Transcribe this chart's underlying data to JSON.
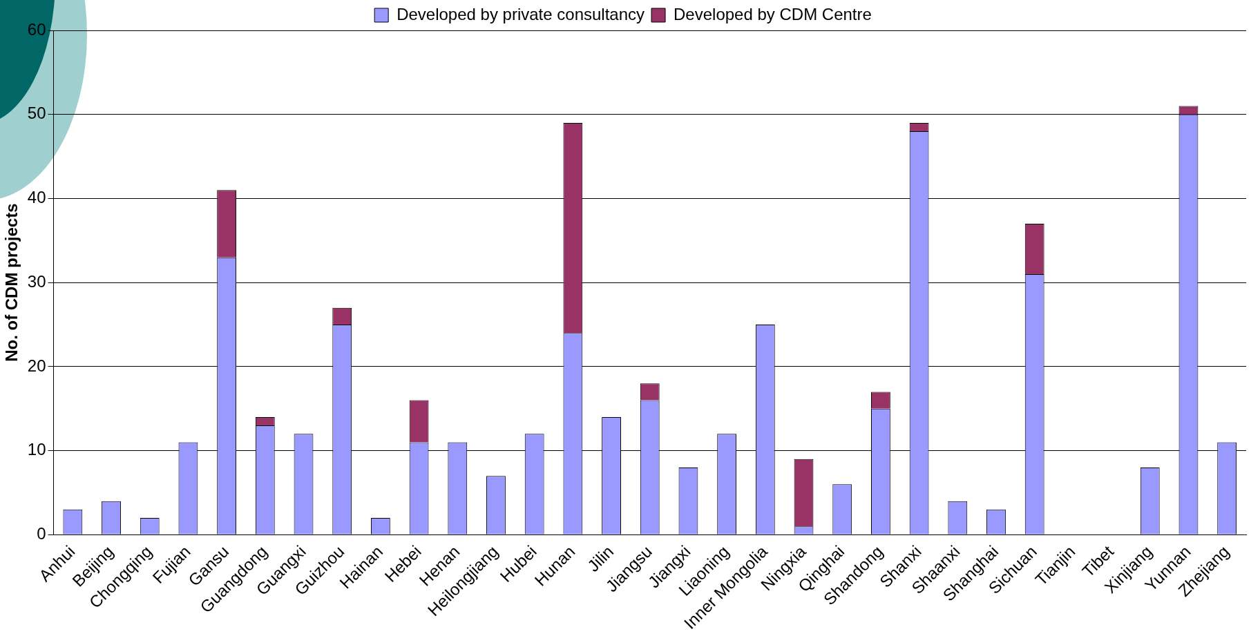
{
  "chart_data": {
    "type": "bar",
    "stacked": true,
    "ylabel": "No. of CDM projects",
    "categories": [
      "Anhui",
      "Beijing",
      "Chongqing",
      "Fujian",
      "Gansu",
      "Guangdong",
      "Guangxi",
      "Guizhou",
      "Hainan",
      "Hebei",
      "Henan",
      "Heilongjiang",
      "Hubei",
      "Hunan",
      "Jilin",
      "Jiangsu",
      "Jiangxi",
      "Liaoning",
      "Inner Mongolia",
      "Ningxia",
      "Qinghai",
      "Shandong",
      "Shanxi",
      "Shaanxi",
      "Shanghai",
      "Sichuan",
      "Tianjin",
      "Tibet",
      "Xinjiang",
      "Yunnan",
      "Zhejiang"
    ],
    "series": [
      {
        "name": "Developed by private consultancy",
        "color": "#9999ff",
        "values": [
          3,
          4,
          2,
          11,
          33,
          13,
          12,
          25,
          2,
          11,
          11,
          7,
          12,
          24,
          14,
          16,
          8,
          12,
          25,
          1,
          6,
          15,
          48,
          4,
          3,
          31,
          0,
          0,
          8,
          50,
          11
        ]
      },
      {
        "name": "Developed by CDM Centre",
        "color": "#993366",
        "values": [
          0,
          0,
          0,
          0,
          8,
          1,
          0,
          2,
          0,
          5,
          0,
          0,
          0,
          25,
          0,
          2,
          0,
          0,
          0,
          8,
          0,
          2,
          1,
          0,
          0,
          6,
          0,
          0,
          0,
          1,
          0
        ]
      }
    ],
    "ylim": [
      0,
      60
    ],
    "yticks": [
      0,
      10,
      20,
      30,
      40,
      50,
      60
    ],
    "grid": "y",
    "legend": "top"
  }
}
